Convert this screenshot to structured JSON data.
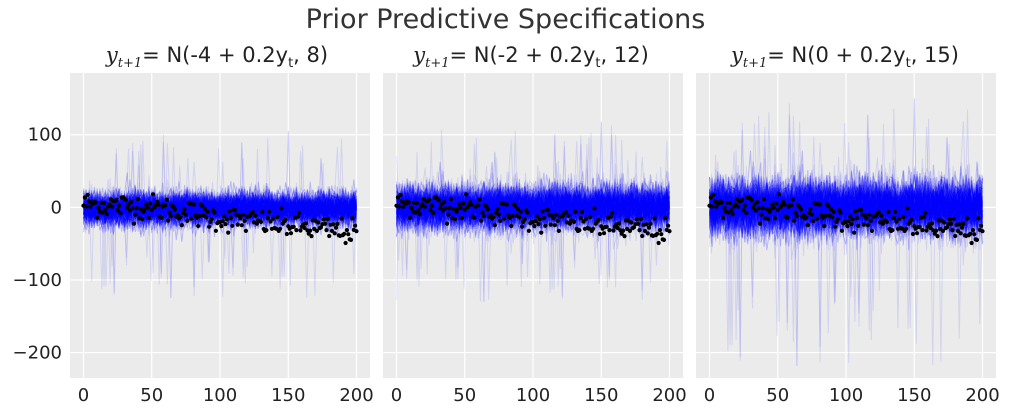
{
  "figure": {
    "title": "Prior Predictive Specifications"
  },
  "chart_data": {
    "type": "line",
    "shared_y_axis": true,
    "x_range": [
      0,
      200
    ],
    "ylim": [
      -235,
      185
    ],
    "xticks": [
      0,
      50,
      100,
      150,
      200
    ],
    "xtick_labels": [
      "0",
      "50",
      "100",
      "150",
      "200"
    ],
    "yticks": [
      100,
      0,
      -100,
      -200
    ],
    "ytick_labels": [
      "100",
      "0",
      "−100",
      "−200"
    ],
    "grid": true,
    "colors": {
      "background": "#ebebeb",
      "grid": "#ffffff",
      "prior_lines": "#0000ff",
      "observed": "#000000"
    },
    "panels": [
      {
        "title_var": "y",
        "title_sub": "t+1",
        "title_rest": "= N(-4 + 0.2y",
        "title_sub2": "t",
        "title_end": ", 8)",
        "intercept": -4,
        "slope": 0.2,
        "sigma": 8,
        "band_low": -18,
        "band_high": 14,
        "spike_max": 105,
        "spike_min": -125
      },
      {
        "title_var": "y",
        "title_sub": "t+1",
        "title_rest": "= N(-2 + 0.2y",
        "title_sub2": "t",
        "title_end": ", 12)",
        "intercept": -2,
        "slope": 0.2,
        "sigma": 12,
        "band_low": -20,
        "band_high": 20,
        "spike_max": 118,
        "spike_min": -130
      },
      {
        "title_var": "y",
        "title_sub": "t+1",
        "title_rest": "= N(0 + 0.2y",
        "title_sub2": "t",
        "title_end": ", 15)",
        "intercept": 0,
        "slope": 0.2,
        "sigma": 15,
        "band_low": -25,
        "band_high": 25,
        "spike_max": 150,
        "spike_min": -218
      }
    ],
    "series": [
      {
        "name": "prior predictive draws",
        "style": "translucent blue lines"
      },
      {
        "name": "observed",
        "style": "black dots",
        "x_step": 1,
        "y_trend": [
          [
            0,
            5
          ],
          [
            50,
            0
          ],
          [
            100,
            -15
          ],
          [
            150,
            -25
          ],
          [
            200,
            -35
          ]
        ],
        "y_noise": 10
      }
    ]
  }
}
